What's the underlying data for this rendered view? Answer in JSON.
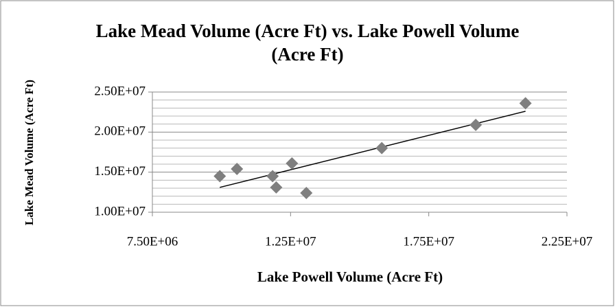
{
  "chart_data": {
    "type": "scatter",
    "title": "Lake Mead Volume (Acre Ft) vs. Lake Powell Volume (Acre Ft)",
    "x_label": "Lake Powell Volume (Acre Ft)",
    "y_label": "Lake Mead Volume (Acre Ft)",
    "series": [
      {
        "name": "Lake Mead Volume (Acre Ft)",
        "color": "#7f7f7f",
        "x": [
          9940000,
          10560000,
          11850000,
          11980000,
          12550000,
          13070000,
          15800000,
          19200000,
          21000000
        ],
        "values": [
          14500000,
          15400000,
          14500000,
          13100000,
          16100000,
          12400000,
          18000000,
          20900000,
          23600000
        ]
      }
    ],
    "trendline": {
      "color": "#000000",
      "x": [
        9940000,
        21000000
      ],
      "values": [
        13100000,
        22600000
      ]
    },
    "xlim": [
      7500000,
      22500000
    ],
    "xticks": [
      {
        "value": 7500000,
        "label": "7.50E+06"
      },
      {
        "value": 12500000,
        "label": "1.25E+07"
      },
      {
        "value": 17500000,
        "label": "1.75E+07"
      },
      {
        "value": 22500000,
        "label": "2.25E+07"
      }
    ],
    "ylim": [
      10000000,
      25000000
    ],
    "yticks": [
      {
        "value": 10000000,
        "label": "1.00E+07"
      },
      {
        "value": 15000000,
        "label": "1.50E+07"
      },
      {
        "value": 20000000,
        "label": "2.00E+07"
      },
      {
        "value": 25000000,
        "label": "2.50E+07"
      }
    ],
    "yminor_ticks": [
      11000000,
      12000000,
      13000000,
      14000000,
      16000000,
      17000000,
      18000000,
      19000000,
      21000000,
      22000000,
      23000000,
      24000000
    ],
    "grid": true
  }
}
